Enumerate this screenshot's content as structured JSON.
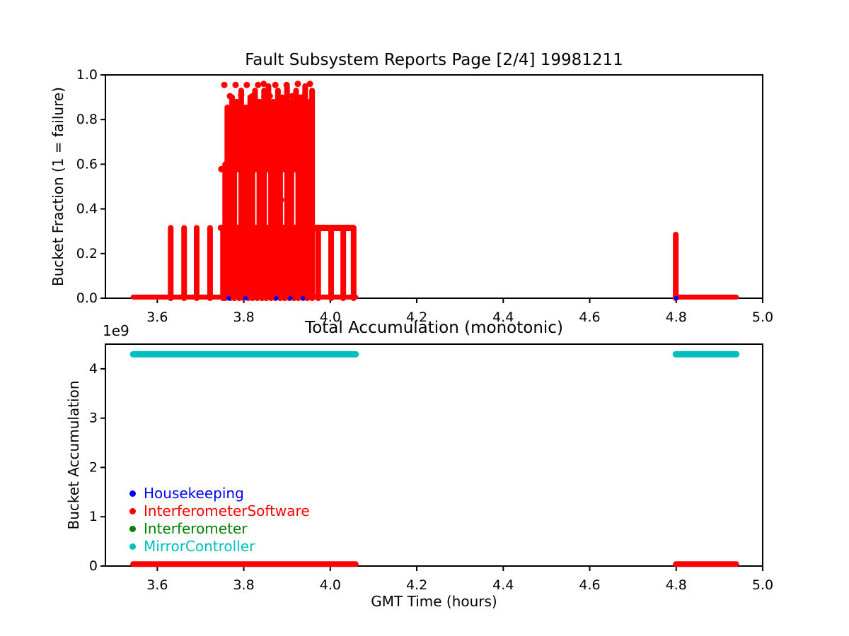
{
  "figure": {
    "background": "#ffffff"
  },
  "chart_data": [
    {
      "type": "scatter",
      "title": "Fault Subsystem Reports Page [2/4] 19981211",
      "xlabel": "",
      "ylabel": "Bucket Fraction (1 = failure)",
      "xlim": [
        3.48,
        5.0
      ],
      "ylim": [
        0.0,
        1.0
      ],
      "grid": false,
      "xtick_labels": [
        "3.6",
        "3.8",
        "4.0",
        "4.2",
        "4.4",
        "4.6",
        "4.8",
        "5.0"
      ],
      "xtick_values": [
        3.6,
        3.8,
        4.0,
        4.2,
        4.4,
        4.6,
        4.8,
        5.0
      ],
      "ytick_labels": [
        "0.0",
        "0.2",
        "0.4",
        "0.6",
        "0.8",
        "1.0"
      ],
      "ytick_values": [
        0.0,
        0.2,
        0.4,
        0.6,
        0.8,
        1.0
      ],
      "series": [
        {
          "name": "InterferometerSoftware",
          "color": "#ff0000",
          "marker": "circle",
          "dot_radius": 4.5,
          "baseline_y": 0.005,
          "baseline_segments": [
            [
              3.544,
              4.059
            ],
            [
              4.799,
              4.939
            ]
          ],
          "hbands": [
            {
              "y": 0.315,
              "x0": 3.747,
              "x1": 4.053
            },
            {
              "y": 0.578,
              "x0": 3.748,
              "x1": 3.945
            }
          ],
          "stripes": [
            [
              3.631,
              0,
              0.315
            ],
            [
              3.662,
              0,
              0.315
            ],
            [
              3.691,
              0,
              0.315
            ],
            [
              3.722,
              0,
              0.315
            ],
            [
              3.752,
              0,
              0.315
            ],
            [
              3.757,
              0,
              0.6
            ],
            [
              3.762,
              0.31,
              0.855
            ],
            [
              3.768,
              0,
              0.315
            ],
            [
              3.773,
              0.31,
              0.9
            ],
            [
              3.778,
              0,
              0.73
            ],
            [
              3.783,
              0.58,
              0.88
            ],
            [
              3.789,
              0,
              0.315
            ],
            [
              3.794,
              0.31,
              0.93
            ],
            [
              3.799,
              0,
              0.58
            ],
            [
              3.805,
              0.31,
              0.855
            ],
            [
              3.81,
              0,
              0.315
            ],
            [
              3.815,
              0.31,
              0.9
            ],
            [
              3.82,
              0,
              0.58
            ],
            [
              3.826,
              0.58,
              0.93
            ],
            [
              3.831,
              0,
              0.315
            ],
            [
              3.836,
              0.31,
              0.88
            ],
            [
              3.842,
              0,
              0.6
            ],
            [
              3.847,
              0.31,
              0.93
            ],
            [
              3.852,
              0,
              0.315
            ],
            [
              3.857,
              0.58,
              0.95
            ],
            [
              3.863,
              0,
              0.58
            ],
            [
              3.868,
              0.31,
              0.88
            ],
            [
              3.873,
              0,
              0.315
            ],
            [
              3.879,
              0.31,
              0.93
            ],
            [
              3.884,
              0,
              0.6
            ],
            [
              3.889,
              0.58,
              0.9
            ],
            [
              3.894,
              0,
              0.315
            ],
            [
              3.9,
              0.31,
              0.95
            ],
            [
              3.905,
              0,
              0.44
            ],
            [
              3.91,
              0.31,
              0.88
            ],
            [
              3.916,
              0,
              0.315
            ],
            [
              3.921,
              0.58,
              0.93
            ],
            [
              3.926,
              0,
              0.58
            ],
            [
              3.931,
              0.31,
              0.9
            ],
            [
              3.937,
              0,
              0.315
            ],
            [
              3.942,
              0.31,
              0.95
            ],
            [
              3.947,
              0,
              0.6
            ],
            [
              3.953,
              0.31,
              0.88
            ],
            [
              3.958,
              0,
              0.93
            ],
            [
              3.972,
              0,
              0.315
            ],
            [
              4.002,
              0,
              0.315
            ],
            [
              4.03,
              0,
              0.315
            ],
            [
              4.054,
              0,
              0.315
            ],
            [
              4.799,
              0,
              0.285
            ]
          ],
          "dots": [
            [
              3.755,
              0.955
            ],
            [
              3.768,
              0.905
            ],
            [
              3.781,
              0.955
            ],
            [
              3.794,
              0.91
            ],
            [
              3.807,
              0.955
            ],
            [
              3.82,
              0.905
            ],
            [
              3.833,
              0.955
            ],
            [
              3.846,
              0.96
            ],
            [
              3.86,
              0.905
            ],
            [
              3.873,
              0.955
            ],
            [
              3.886,
              0.44
            ],
            [
              3.899,
              0.955
            ],
            [
              3.912,
              0.905
            ],
            [
              3.925,
              0.96
            ],
            [
              3.94,
              0.905
            ],
            [
              3.953,
              0.96
            ]
          ]
        },
        {
          "name": "Housekeeping",
          "color": "#0000ff",
          "marker": "circle",
          "dot_radius": 3.2,
          "dots": [
            [
              3.765,
              0.0
            ],
            [
              3.804,
              0.0
            ],
            [
              3.875,
              0.0
            ],
            [
              3.908,
              0.0
            ],
            [
              3.937,
              0.0
            ],
            [
              4.8,
              0.0
            ]
          ]
        }
      ]
    },
    {
      "type": "scatter",
      "title": "Total Accumulation (monotonic)",
      "xlabel": "GMT Time (hours)",
      "ylabel": "Bucket Accumulation",
      "offset_text": "1e9",
      "xlim": [
        3.48,
        5.0
      ],
      "ylim": [
        0,
        4500000000
      ],
      "grid": false,
      "xtick_labels": [
        "3.6",
        "3.8",
        "4.0",
        "4.2",
        "4.4",
        "4.6",
        "4.8",
        "5.0"
      ],
      "xtick_values": [
        3.6,
        3.8,
        4.0,
        4.2,
        4.4,
        4.6,
        4.8,
        5.0
      ],
      "ytick_labels": [
        "0",
        "1",
        "2",
        "3",
        "4"
      ],
      "ytick_values": [
        0,
        1000000000,
        2000000000,
        3000000000,
        4000000000
      ],
      "series": [
        {
          "name": "MirrorController",
          "color": "#00bfbf",
          "marker": "circle",
          "line_width": 9,
          "y": 4294967295,
          "segments": [
            [
              3.544,
              4.059
            ],
            [
              4.799,
              4.939
            ]
          ]
        },
        {
          "name": "InterferometerSoftware",
          "color": "#ff0000",
          "marker": "circle",
          "line_width": 8,
          "y": 40000000,
          "segments": [
            [
              3.544,
              4.059
            ],
            [
              4.799,
              4.939
            ]
          ]
        }
      ],
      "legend": {
        "position": "lower left",
        "frame": false,
        "entries": [
          {
            "label": "Housekeeping",
            "color": "#0000ff"
          },
          {
            "label": "InterferometerSoftware",
            "color": "#ff0000"
          },
          {
            "label": "Interferometer",
            "color": "#008000"
          },
          {
            "label": "MirrorController",
            "color": "#00bfbf"
          }
        ]
      }
    }
  ]
}
